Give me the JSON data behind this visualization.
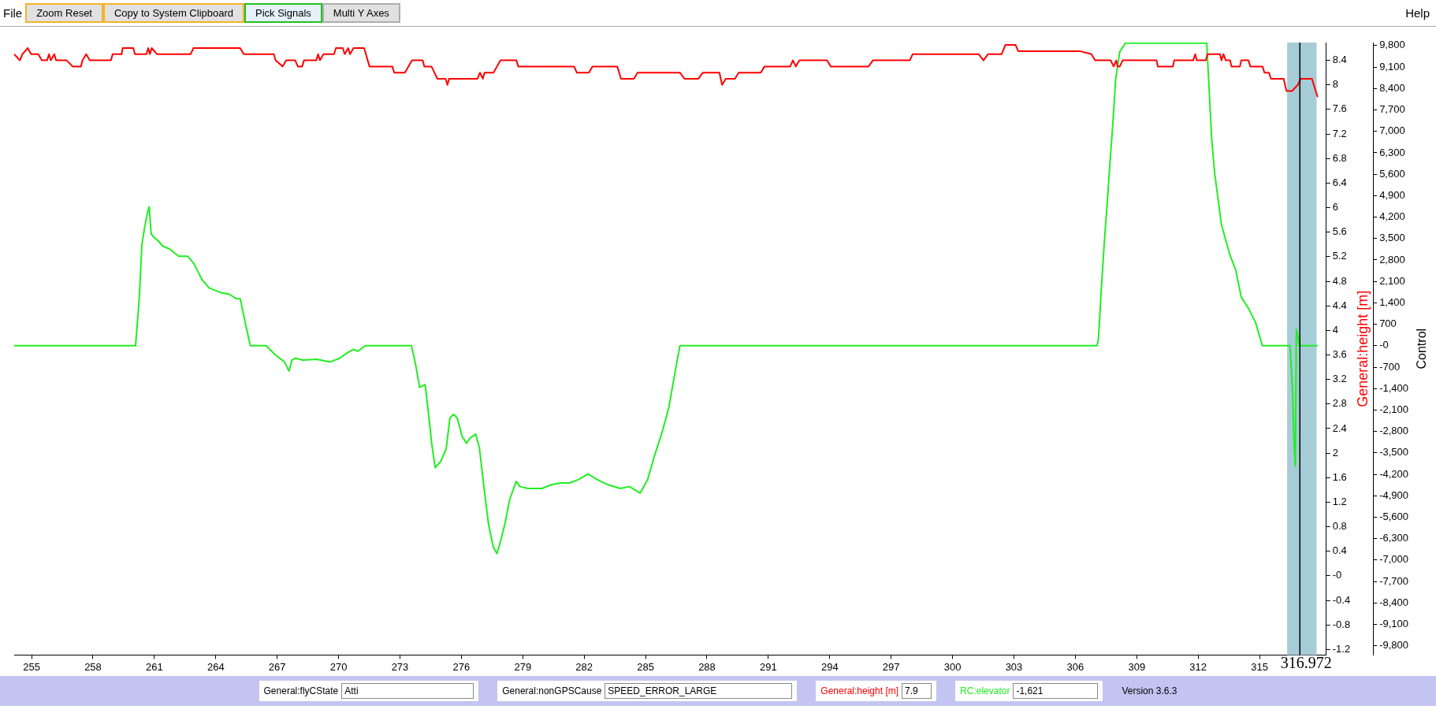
{
  "chart_data": {
    "type": "line",
    "ylabel": "General:height [m]",
    "y2label": "Control",
    "marker": "none",
    "grid": false,
    "legend": "bottom",
    "xlim": [
      254.15,
      318.26
    ],
    "xticks": [
      255,
      258,
      261,
      264,
      267,
      270,
      273,
      276,
      279,
      282,
      285,
      288,
      291,
      294,
      297,
      300,
      303,
      306,
      309,
      312,
      315
    ],
    "ylim": [
      -1.29,
      8.69
    ],
    "yticks": [
      -1.2,
      -0.8,
      -0.4,
      {
        "value": 0,
        "label": "-0"
      },
      0.4,
      0.8,
      1.2,
      1.6,
      2,
      2.4,
      2.8,
      3.2,
      3.6,
      4,
      4.4,
      4.8,
      5.2,
      5.6,
      6,
      6.4,
      6.8,
      7.2,
      7.6,
      8,
      8.4
    ],
    "y2lim": [
      -10100,
      9900
    ],
    "y2ticks": [
      {
        "value": -9800,
        "label": "-9,800"
      },
      {
        "value": -9100,
        "label": "-9,100"
      },
      {
        "value": -8400,
        "label": "-8,400"
      },
      {
        "value": -7700,
        "label": "-7,700"
      },
      {
        "value": -7000,
        "label": "-7,000"
      },
      {
        "value": -6300,
        "label": "-6,300"
      },
      {
        "value": -5600,
        "label": "-5,600"
      },
      {
        "value": -4900,
        "label": "-4,900"
      },
      {
        "value": -4200,
        "label": "-4,200"
      },
      {
        "value": -3500,
        "label": "-3,500"
      },
      {
        "value": -2800,
        "label": "-2,800"
      },
      {
        "value": -2100,
        "label": "-2,100"
      },
      {
        "value": -1400,
        "label": "-1,400"
      },
      -700,
      {
        "value": 0,
        "label": "-0"
      },
      700,
      {
        "value": 1400,
        "label": "1,400"
      },
      {
        "value": 2100,
        "label": "2,100"
      },
      {
        "value": 2800,
        "label": "2,800"
      },
      {
        "value": 3500,
        "label": "3,500"
      },
      {
        "value": 4200,
        "label": "4,200"
      },
      {
        "value": 4900,
        "label": "4,900"
      },
      {
        "value": 5600,
        "label": "5,600"
      },
      {
        "value": 6300,
        "label": "6,300"
      },
      {
        "value": 7000,
        "label": "7,000"
      },
      {
        "value": 7700,
        "label": "7,700"
      },
      {
        "value": 8400,
        "label": "8,400"
      },
      {
        "value": 9100,
        "label": "9,100"
      },
      {
        "value": 9800,
        "label": "9,800"
      }
    ],
    "series": [
      {
        "name": "General:height [m]",
        "color": "#ff0000",
        "x": [
          254.15,
          254.43,
          254.55,
          254.81,
          254.98,
          255.33,
          255.5,
          255.76,
          255.85,
          255.94,
          256.11,
          256.2,
          256.71,
          257.01,
          257.41,
          257.49,
          257.67,
          257.84,
          258.88,
          258.96,
          259.4,
          259.45,
          259.97,
          260.05,
          260.61,
          260.7,
          260.78,
          260.87,
          261.13,
          262.77,
          262.91,
          265.19,
          265.37,
          266.84,
          266.92,
          267.27,
          267.44,
          267.88,
          268.01,
          268.22,
          268.31,
          268.91,
          269,
          269.09,
          269.26,
          269.78,
          269.87,
          270.21,
          270.3,
          270.47,
          270.56,
          270.73,
          271.25,
          271.51,
          272.63,
          272.72,
          273.24,
          273.59,
          274.11,
          274.19,
          274.54,
          274.83,
          275.23,
          275.32,
          275.4,
          276.79,
          276.91,
          277.05,
          277.13,
          277.57,
          277.91,
          278.69,
          278.78,
          281.51,
          281.64,
          282.23,
          282.41,
          283.62,
          283.8,
          284.43,
          284.61,
          286.68,
          286.9,
          287.58,
          287.8,
          288.61,
          288.74,
          288.92,
          289.37,
          289.55,
          290.63,
          290.81,
          292.07,
          292.2,
          292.34,
          292.52,
          293.87,
          294.05,
          295.89,
          296.11,
          297.91,
          298.05,
          301.28,
          301.51,
          301.73,
          302.4,
          302.58,
          303.08,
          303.21,
          306.22,
          306.79,
          306.96,
          307.73,
          307.87,
          308,
          308.06,
          308.17,
          308.31,
          309.97,
          310.03,
          310.77,
          310.83,
          311.76,
          311.86,
          311.93,
          312.38,
          312.45,
          313.07,
          313.14,
          313.24,
          313.35,
          313.56,
          313.63,
          314.04,
          314.11,
          314.46,
          314.55,
          315.15,
          315.24,
          315.46,
          315.56,
          316.18,
          316.32,
          316.59,
          316.87,
          317.01,
          317.56,
          317.84
        ],
        "values": [
          8.5,
          8.4,
          8.5,
          8.6,
          8.5,
          8.5,
          8.4,
          8.4,
          8.5,
          8.4,
          8.5,
          8.4,
          8.4,
          8.3,
          8.3,
          8.4,
          8.5,
          8.4,
          8.4,
          8.5,
          8.5,
          8.6,
          8.6,
          8.5,
          8.5,
          8.6,
          8.5,
          8.6,
          8.5,
          8.5,
          8.6,
          8.6,
          8.5,
          8.5,
          8.4,
          8.3,
          8.4,
          8.4,
          8.3,
          8.3,
          8.4,
          8.4,
          8.5,
          8.4,
          8.5,
          8.5,
          8.6,
          8.6,
          8.5,
          8.6,
          8.5,
          8.6,
          8.6,
          8.3,
          8.3,
          8.2,
          8.2,
          8.4,
          8.4,
          8.3,
          8.3,
          8.1,
          8.1,
          8,
          8.1,
          8.1,
          8.2,
          8.1,
          8.2,
          8.2,
          8.4,
          8.4,
          8.3,
          8.3,
          8.2,
          8.2,
          8.3,
          8.3,
          8.1,
          8.1,
          8.2,
          8.2,
          8.1,
          8.1,
          8.2,
          8.2,
          8,
          8.1,
          8.1,
          8.2,
          8.2,
          8.3,
          8.3,
          8.4,
          8.3,
          8.4,
          8.4,
          8.3,
          8.3,
          8.4,
          8.4,
          8.5,
          8.5,
          8.4,
          8.5,
          8.5,
          8.65,
          8.65,
          8.55,
          8.55,
          8.5,
          8.4,
          8.4,
          8.3,
          8.4,
          8.3,
          8.3,
          8.4,
          8.4,
          8.3,
          8.3,
          8.4,
          8.4,
          8.5,
          8.4,
          8.4,
          8.5,
          8.5,
          8.4,
          8.5,
          8.4,
          8.4,
          8.3,
          8.3,
          8.4,
          8.4,
          8.3,
          8.3,
          8.2,
          8.2,
          8.1,
          8.1,
          7.9,
          7.9,
          8,
          8.1,
          8.1,
          7.8
        ]
      },
      {
        "name": "RC:elevator",
        "color": "#22ee22",
        "axis": "y2",
        "x": [
          254.15,
          260.08,
          260.26,
          260.39,
          260.53,
          260.66,
          260.75,
          260.84,
          260.97,
          261.15,
          261.42,
          261.74,
          262.19,
          262.64,
          262.95,
          263.31,
          263.67,
          264.21,
          264.66,
          265.02,
          265.2,
          265.47,
          265.69,
          266.46,
          266.91,
          267.36,
          267.58,
          267.72,
          267.89,
          268.25,
          268.93,
          269.6,
          270.05,
          270.41,
          270.73,
          270.95,
          271.31,
          273.56,
          273.74,
          273.96,
          274.23,
          274.41,
          274.55,
          274.72,
          274.99,
          275.26,
          275.44,
          275.62,
          275.8,
          276.03,
          276.25,
          276.43,
          276.7,
          276.88,
          277.11,
          277.33,
          277.56,
          277.74,
          277.92,
          278.14,
          278.36,
          278.68,
          278.86,
          279.26,
          279.94,
          280.39,
          280.84,
          281.29,
          281.73,
          282.18,
          282.63,
          283.17,
          283.76,
          284.21,
          284.74,
          285.1,
          285.42,
          285.78,
          286.14,
          286.45,
          286.68,
          307.06,
          307.13,
          307.27,
          307.41,
          307.55,
          307.69,
          307.83,
          307.97,
          308.17,
          308.45,
          312.42,
          312.52,
          312.66,
          312.8,
          313.14,
          313.56,
          313.83,
          314.11,
          314.46,
          314.8,
          315.14,
          316.49,
          316.59,
          316.62,
          316.66,
          316.7,
          316.75,
          316.8,
          316.87,
          316.94,
          317.84
        ],
        "values": [
          0,
          0,
          1530,
          3300,
          3890,
          4340,
          4540,
          3660,
          3540,
          3450,
          3250,
          3160,
          2920,
          2920,
          2660,
          2180,
          1890,
          1740,
          1680,
          1530,
          1530,
          650,
          0,
          0,
          -300,
          -530,
          -830,
          -470,
          -410,
          -470,
          -440,
          -530,
          -410,
          -240,
          -120,
          -180,
          0,
          0,
          -530,
          -1360,
          -1270,
          -2300,
          -3190,
          -3980,
          -3780,
          -3360,
          -2360,
          -2240,
          -2360,
          -2950,
          -3190,
          -3010,
          -2890,
          -3330,
          -4660,
          -5840,
          -6580,
          -6790,
          -6370,
          -5780,
          -5020,
          -4430,
          -4600,
          -4660,
          -4660,
          -4540,
          -4480,
          -4480,
          -4370,
          -4190,
          -4370,
          -4540,
          -4660,
          -4600,
          -4810,
          -4370,
          -3630,
          -2890,
          -2010,
          -830,
          0,
          0,
          210,
          1850,
          3310,
          4590,
          5960,
          7230,
          8690,
          9600,
          9880,
          9880,
          8600,
          6780,
          5680,
          3950,
          2950,
          2490,
          1580,
          1220,
          770,
          0,
          0,
          -1150,
          -1620,
          -2610,
          -3340,
          -3930,
          530,
          310,
          0,
          0
        ]
      }
    ],
    "bands": [
      {
        "axis": "x",
        "from": 316.35,
        "to": 317.79,
        "color": "#a6cdd7"
      }
    ],
    "ref_lines": [
      {
        "axis": "x",
        "value": 316.972,
        "label": "316.972",
        "color": "#000000"
      }
    ],
    "annotations": [
      "File",
      "Zoom Reset",
      "Copy to System Clipboard",
      "Pick Signals",
      "Multi Y Axes",
      "Help",
      "General:flyCState",
      "Atti",
      "General:nonGPSCause",
      "SPEED_ERROR_LARGE",
      "7.9",
      "-1,621",
      "Version 3.6.3"
    ]
  }
}
